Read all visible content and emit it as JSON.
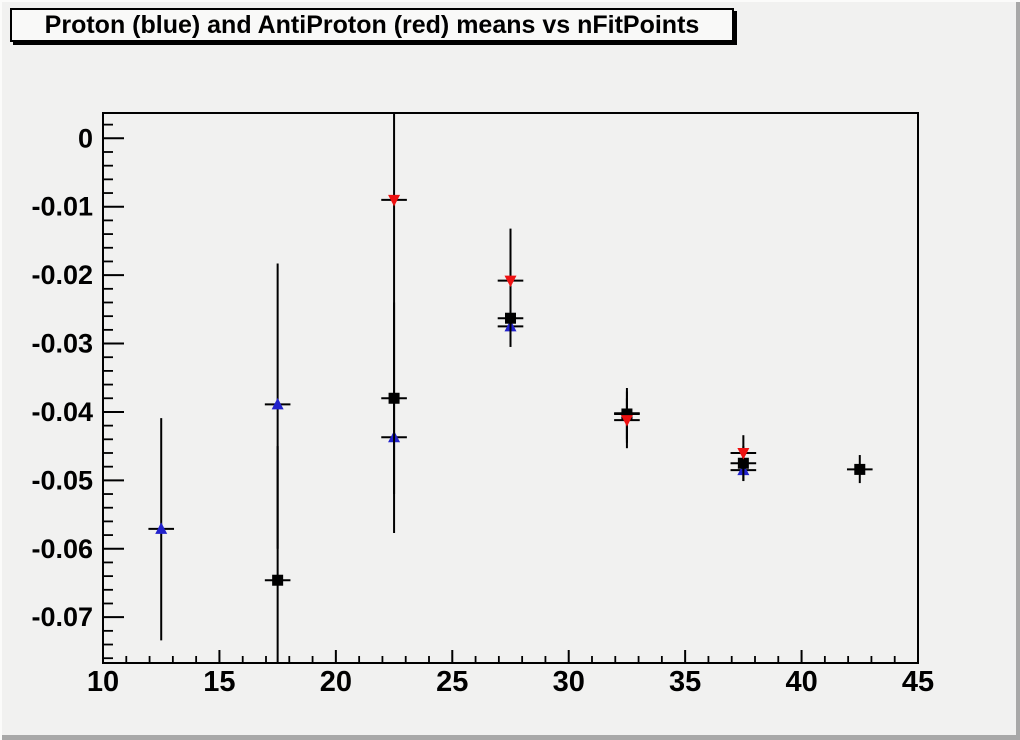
{
  "window": {
    "background": "#f1f1f0",
    "edge_highlight": "#fbfbfa",
    "edge_shadow": "#a8a8a8"
  },
  "title_box": {
    "text": "Proton (blue) and AntiProton (red) means vs nFitPoints",
    "background": "#f9f9f8",
    "border_color": "#000000"
  },
  "chart_data": {
    "type": "scatter",
    "title": "Proton (blue) and AntiProton (red) means vs nFitPoints",
    "xlabel": "",
    "ylabel": "",
    "grid": false,
    "legend": "none",
    "xlim": [
      10,
      45
    ],
    "ylim": [
      -0.0767,
      0.0037
    ],
    "xticks": {
      "values": [
        10,
        15,
        20,
        25,
        30,
        35,
        40,
        45
      ],
      "labels": [
        "10",
        "15",
        "20",
        "25",
        "30",
        "35",
        "40",
        "45"
      ],
      "minor_step": 1
    },
    "yticks": {
      "values": [
        0,
        -0.01,
        -0.02,
        -0.03,
        -0.04,
        -0.05,
        -0.06,
        -0.07
      ],
      "labels": [
        "0",
        "-0.01",
        "-0.02",
        "-0.03",
        "-0.04",
        "-0.05",
        "-0.06",
        "-0.07"
      ],
      "minor_step": 0.002
    },
    "frame_color": "#000000",
    "series": [
      {
        "name": "Proton (blue)",
        "marker": "triangle-up",
        "color": "#2222cc",
        "xerr": 0.55,
        "points": [
          {
            "x": 12.5,
            "y": -0.0571,
            "err_low": -0.0734,
            "err_high": -0.0409
          },
          {
            "x": 17.5,
            "y": -0.0389,
            "err_low": -0.06,
            "err_high": -0.0183
          },
          {
            "x": 22.5,
            "y": -0.0437,
            "err_low": -0.0577,
            "err_high": -0.03
          },
          {
            "x": 27.5,
            "y": -0.0275,
            "err_low": -0.0305,
            "err_high": -0.0245
          },
          {
            "x": 32.5,
            "y": -0.0402,
            "err_low": -0.044,
            "err_high": -0.037
          },
          {
            "x": 37.5,
            "y": -0.0485,
            "err_low": -0.0501,
            "err_high": -0.046
          }
        ]
      },
      {
        "name": "unlabeled black squares",
        "marker": "square",
        "color": "#000000",
        "xerr": 0.55,
        "points": [
          {
            "x": 17.5,
            "y": -0.0646,
            "err_low": -0.077,
            "err_high": -0.045
          },
          {
            "x": 22.5,
            "y": -0.038,
            "err_low": -0.052,
            "err_high": -0.024
          },
          {
            "x": 27.5,
            "y": -0.0263,
            "err_low": -0.0292,
            "err_high": -0.0238
          },
          {
            "x": 32.5,
            "y": -0.0403,
            "err_low": -0.0453,
            "err_high": -0.0365
          },
          {
            "x": 37.5,
            "y": -0.0475,
            "err_low": -0.0501,
            "err_high": -0.045
          },
          {
            "x": 42.5,
            "y": -0.0484,
            "err_low": -0.0504,
            "err_high": -0.0463
          }
        ]
      },
      {
        "name": "AntiProton (red)",
        "marker": "triangle-down",
        "color": "#ee1111",
        "xerr": 0.55,
        "points": [
          {
            "x": 22.5,
            "y": -0.009,
            "err_low": -0.03,
            "err_high": 0.004
          },
          {
            "x": 27.5,
            "y": -0.0208,
            "err_low": -0.0285,
            "err_high": -0.0132
          },
          {
            "x": 32.5,
            "y": -0.0412,
            "err_low": -0.0445,
            "err_high": -0.038
          },
          {
            "x": 37.5,
            "y": -0.046,
            "err_low": -0.0486,
            "err_high": -0.0434
          }
        ]
      }
    ]
  }
}
